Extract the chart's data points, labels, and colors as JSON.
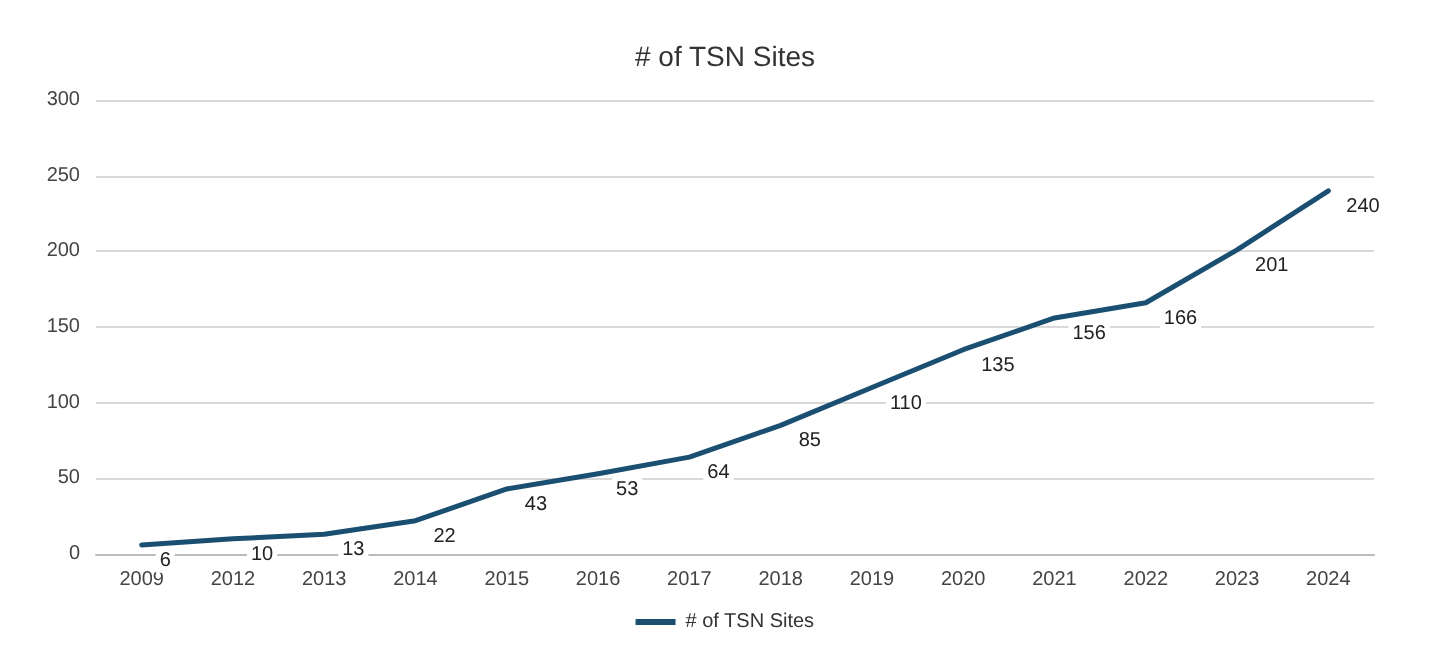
{
  "chart_data": {
    "type": "line",
    "title": "# of TSN Sites",
    "categories": [
      "2009",
      "2012",
      "2013",
      "2014",
      "2015",
      "2016",
      "2017",
      "2018",
      "2019",
      "2020",
      "2021",
      "2022",
      "2023",
      "2024"
    ],
    "series": [
      {
        "name": "# of TSN Sites",
        "color": "#1b4f72",
        "values": [
          6,
          10,
          13,
          22,
          43,
          53,
          64,
          85,
          110,
          135,
          156,
          166,
          201,
          240
        ]
      }
    ],
    "ylim": [
      0,
      300
    ],
    "yticks": [
      0,
      50,
      100,
      150,
      200,
      250,
      300
    ],
    "grid": "y",
    "legend": "bottom",
    "data_labels": true,
    "marker": "none",
    "line_style": "solid"
  }
}
